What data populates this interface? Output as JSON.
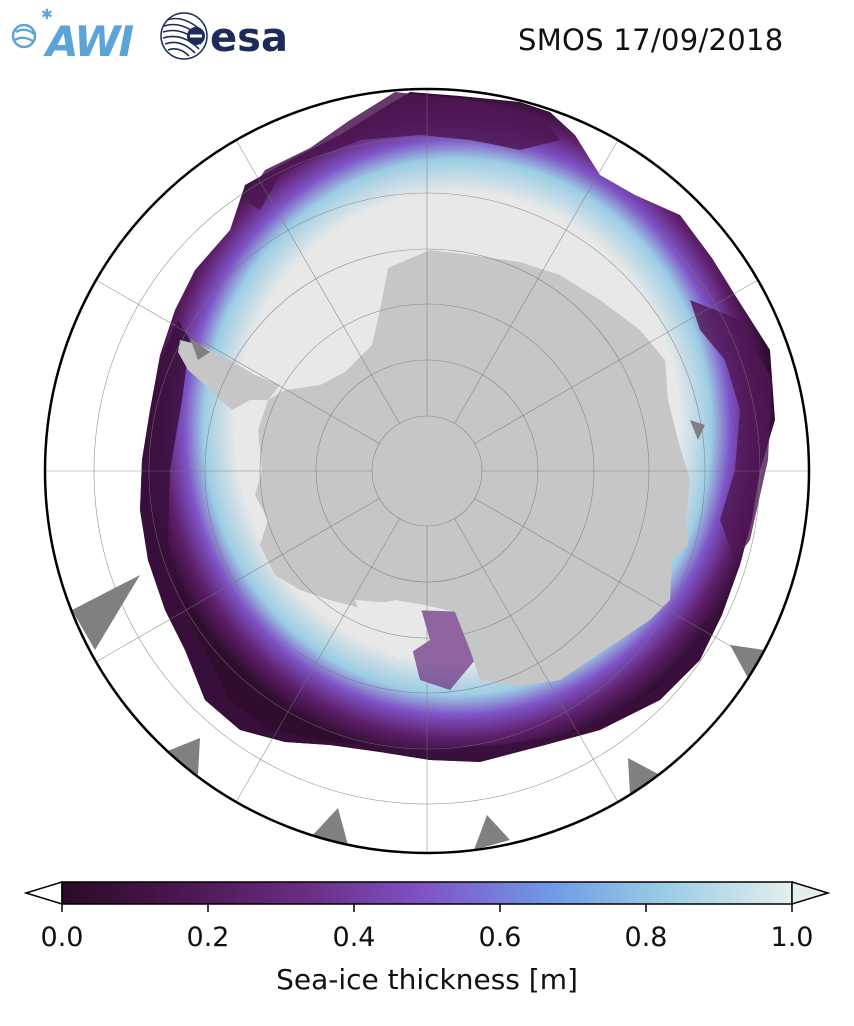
{
  "title": "SMOS 17/09/2018",
  "logos": {
    "awi": "AWI",
    "esa": "esa"
  },
  "map": {
    "projection": "south-polar-stereographic",
    "land_color": "#c6c6c6",
    "ocean_color": "#ffffff",
    "thick_ice_color": "#e8e8e8",
    "nodata_color": "#808080",
    "graticule": true
  },
  "colorbar": {
    "label": "Sea-ice thickness [m]",
    "min": 0.0,
    "max": 1.0,
    "extend": "both",
    "ticks": [
      "0.0",
      "0.2",
      "0.4",
      "0.6",
      "0.8",
      "1.0"
    ],
    "tick_values": [
      0.0,
      0.2,
      0.4,
      0.6,
      0.8,
      1.0
    ],
    "colormap": [
      "#2a0b25",
      "#4d1652",
      "#6a2c82",
      "#7f54c7",
      "#6f9ae6",
      "#9ccde4",
      "#e4eeee"
    ]
  }
}
